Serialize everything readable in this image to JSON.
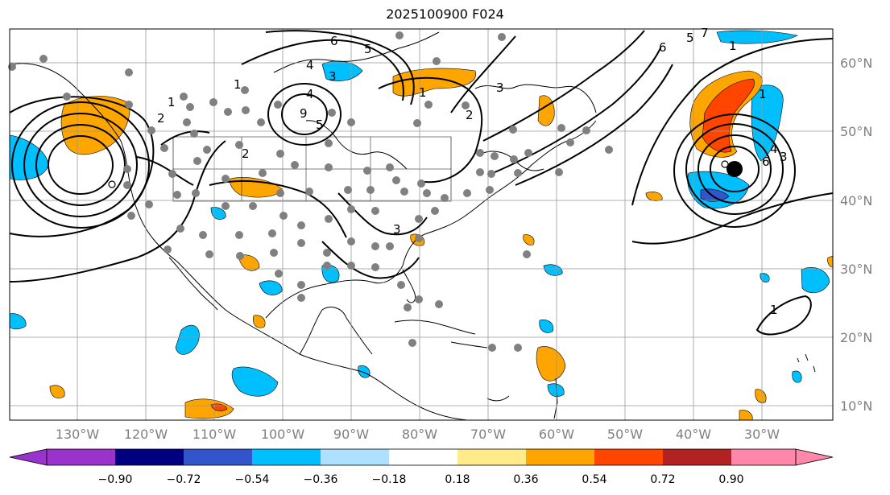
{
  "title": "2025100900 F024",
  "map": {
    "lon_labels": [
      "130°W",
      "120°W",
      "110°W",
      "100°W",
      "90°W",
      "80°W",
      "70°W",
      "60°W",
      "50°W",
      "40°W",
      "30°W"
    ],
    "lat_labels": [
      "60°N",
      "50°N",
      "40°N",
      "30°N",
      "20°N",
      "10°N"
    ],
    "contour_labels": [
      "1",
      "2",
      "2",
      "1",
      "3",
      "5",
      "6",
      "9",
      "4",
      "5",
      "2",
      "3",
      "1",
      "6",
      "7",
      "5",
      "6",
      "1",
      "3",
      "4",
      "4",
      "3",
      "1",
      "1"
    ],
    "land_color": "#ffffff",
    "grid_color": "#999999",
    "station_color": "#808080",
    "center_marker_color": "#000000"
  },
  "colorbar": {
    "ticks": [
      "−0.90",
      "−0.72",
      "−0.54",
      "−0.36",
      "−0.18",
      "0.18",
      "0.36",
      "0.54",
      "0.72",
      "0.90"
    ],
    "colors": [
      "#9933cc",
      "#000080",
      "#3355cc",
      "#00bfff",
      "#aee0ff",
      "#ffffff",
      "#ffeb8a",
      "#ffa500",
      "#ff4500",
      "#b22222",
      "#ff88aa"
    ]
  }
}
